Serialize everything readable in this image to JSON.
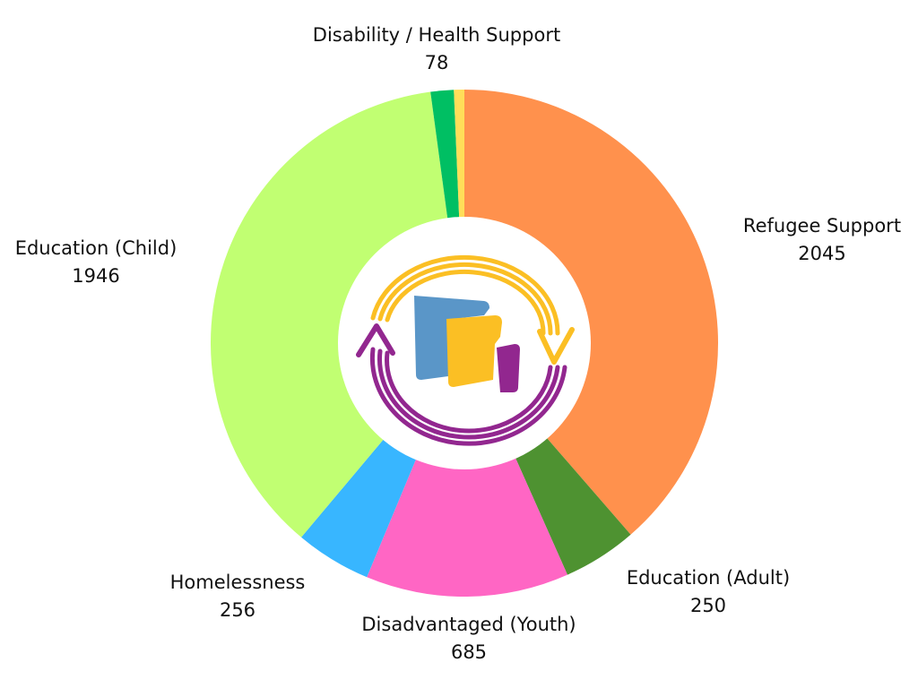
{
  "chart_data": {
    "type": "donut",
    "categories": [
      "Refugee Support",
      "Education (Adult)",
      "Disadvantaged (Youth)",
      "Homelessness",
      "Education (Child)",
      "Disability / Health Support",
      null
    ],
    "values": [
      2045,
      250,
      685,
      256,
      1946,
      78,
      35
    ],
    "colors": [
      "#ff914d",
      "#4e9231",
      "#ff66c4",
      "#38b6ff",
      "#c1ff72",
      "#00bf63",
      "#ffde59"
    ]
  }
}
